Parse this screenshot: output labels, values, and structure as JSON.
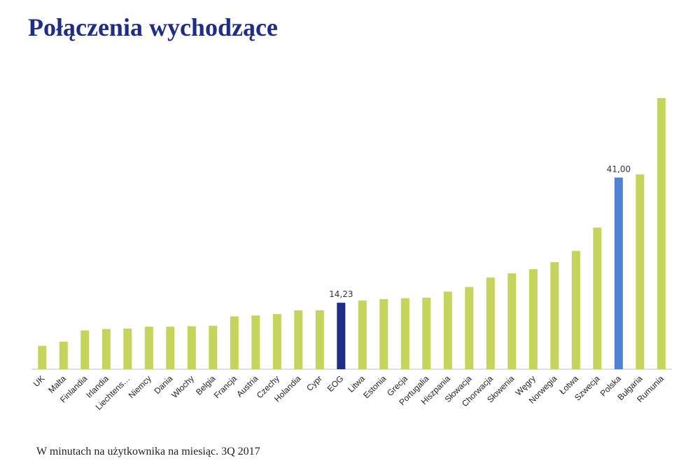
{
  "title": "Połączenia wychodzące",
  "footnote": "W minutach na użytkownika na miesiąc. 3Q 2017",
  "colors": {
    "default": "#c5d45a",
    "eog": "#1e2f85",
    "polska": "#4f81d6",
    "title": "#1f2d86"
  },
  "chart_data": {
    "type": "bar",
    "title": "Połączenia wychodzące",
    "xlabel": "",
    "ylabel": "",
    "ylim": [
      0,
      58
    ],
    "grid": false,
    "legend": "none",
    "categories": [
      "UK",
      "Malta",
      "Finlandia",
      "Irlandia",
      "Liechtens…",
      "Niemcy",
      "Dania",
      "Włochy",
      "Belgia",
      "Francja",
      "Austria",
      "Czechy",
      "Holandia",
      "Cypr",
      "EOG",
      "Litwa",
      "Estonia",
      "Grecja",
      "Portugalia",
      "Hiszpania",
      "Słowacja",
      "Chorwacja",
      "Słowenia",
      "Węgry",
      "Norwegia",
      "Łotwa",
      "Szwecja",
      "Polska",
      "Bułgaria",
      "Rumunia"
    ],
    "values": [
      5.0,
      5.9,
      8.3,
      8.6,
      8.7,
      9.1,
      9.1,
      9.2,
      9.3,
      11.3,
      11.5,
      11.8,
      12.6,
      12.6,
      14.23,
      14.7,
      15.0,
      15.2,
      15.3,
      16.6,
      17.6,
      19.6,
      20.5,
      21.4,
      22.9,
      25.3,
      30.3,
      41.0,
      41.7,
      58.0
    ],
    "highlight": {
      "EOG": "eog",
      "Polska": "polska"
    },
    "data_labels": [
      {
        "category": "EOG",
        "text": "14,23"
      },
      {
        "category": "Polska",
        "text": "41,00"
      }
    ]
  }
}
